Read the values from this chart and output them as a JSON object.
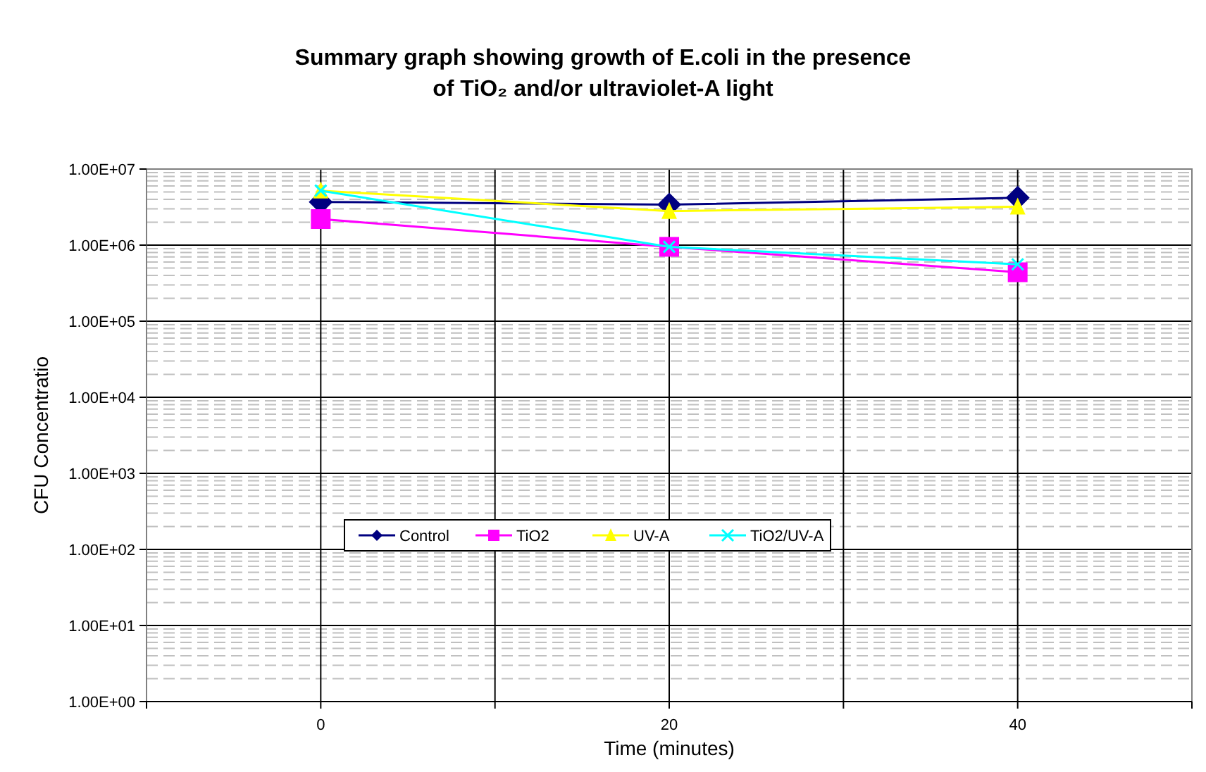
{
  "chart_data": {
    "type": "line",
    "title": "Summary graph showing growth of E.coli in the presence of TiO₂ and/or ultraviolet-A light",
    "xlabel": "Time (minutes)",
    "ylabel": "CFU Concentratio",
    "x": [
      0,
      20,
      40
    ],
    "series": [
      {
        "name": "Control",
        "color": "#000080",
        "marker": "diamond",
        "values": [
          3700000,
          3400000,
          4200000
        ]
      },
      {
        "name": "TiO2",
        "color": "#ff00ff",
        "marker": "square",
        "values": [
          2200000,
          950000,
          440000
        ]
      },
      {
        "name": "UV-A",
        "color": "#ffff00",
        "marker": "triangle",
        "values": [
          5200000,
          2800000,
          3200000
        ]
      },
      {
        "name": "TiO2/UV-A",
        "color": "#00ffff",
        "marker": "cross",
        "values": [
          5200000,
          950000,
          560000
        ]
      }
    ],
    "log": "y",
    "grid": true,
    "legend": "center",
    "xlim": [
      -10,
      50
    ],
    "xticks": [
      {
        "value": -10,
        "label": null
      },
      0,
      {
        "value": 10,
        "label": null
      },
      20,
      {
        "value": 30,
        "label": null
      },
      40,
      {
        "value": 50,
        "label": null
      }
    ],
    "ylim": [
      1,
      10000000
    ],
    "yticks": [
      {
        "value": 1,
        "label": "1.00E+00"
      },
      {
        "value": 10,
        "label": "1.00E+01"
      },
      {
        "value": 100,
        "label": "1.00E+02"
      },
      {
        "value": 1000,
        "label": "1.00E+03"
      },
      {
        "value": 10000,
        "label": "1.00E+04"
      },
      {
        "value": 100000,
        "label": "1.00E+05"
      },
      {
        "value": 1000000,
        "label": "1.00E+06"
      },
      {
        "value": 10000000,
        "label": "1.00E+07"
      }
    ]
  }
}
